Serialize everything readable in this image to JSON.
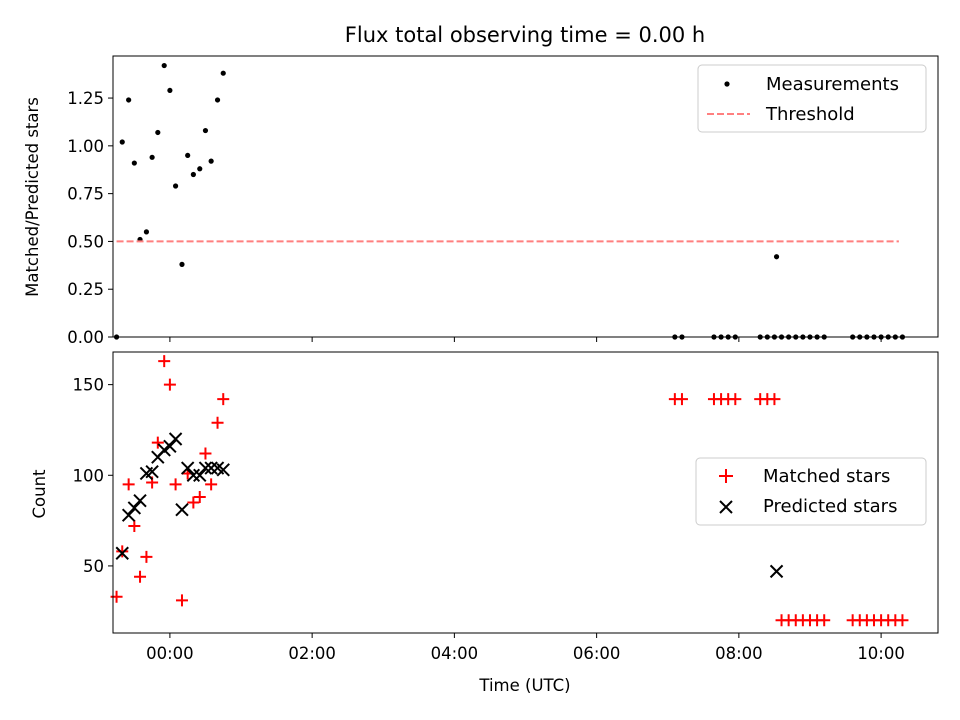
{
  "chart_data": [
    {
      "type": "scatter",
      "title": "Flux total observing time = 0.00 h",
      "xlabel": "",
      "ylabel": "Matched/Predicted stars",
      "xlim": [
        -0.8,
        10.8
      ],
      "ylim": [
        0,
        1.47
      ],
      "yticks": [
        0.0,
        0.25,
        0.5,
        0.75,
        1.0,
        1.25
      ],
      "ytick_labels": [
        "0.00",
        "0.25",
        "0.50",
        "0.75",
        "1.00",
        "1.25"
      ],
      "legend_position": "upper-right",
      "series": [
        {
          "name": "Measurements",
          "marker": "dot",
          "color": "#000000",
          "points": [
            [
              -0.75,
              0.0
            ],
            [
              -0.67,
              1.02
            ],
            [
              -0.58,
              1.24
            ],
            [
              -0.5,
              0.91
            ],
            [
              -0.42,
              0.51
            ],
            [
              -0.33,
              0.55
            ],
            [
              -0.25,
              0.94
            ],
            [
              -0.17,
              1.07
            ],
            [
              -0.08,
              1.42
            ],
            [
              0.0,
              1.29
            ],
            [
              0.08,
              0.79
            ],
            [
              0.17,
              0.38
            ],
            [
              0.25,
              0.95
            ],
            [
              0.33,
              0.85
            ],
            [
              0.42,
              0.88
            ],
            [
              0.5,
              1.08
            ],
            [
              0.58,
              0.92
            ],
            [
              0.67,
              1.24
            ],
            [
              0.75,
              1.38
            ],
            [
              7.1,
              0.0
            ],
            [
              7.2,
              0.0
            ],
            [
              7.65,
              0.0
            ],
            [
              7.75,
              0.0
            ],
            [
              7.85,
              0.0
            ],
            [
              7.95,
              0.0
            ],
            [
              8.3,
              0.0
            ],
            [
              8.4,
              0.0
            ],
            [
              8.5,
              0.0
            ],
            [
              8.53,
              0.42
            ],
            [
              8.6,
              0.0
            ],
            [
              8.7,
              0.0
            ],
            [
              8.8,
              0.0
            ],
            [
              8.9,
              0.0
            ],
            [
              9.0,
              0.0
            ],
            [
              9.1,
              0.0
            ],
            [
              9.2,
              0.0
            ],
            [
              9.6,
              0.0
            ],
            [
              9.7,
              0.0
            ],
            [
              9.8,
              0.0
            ],
            [
              9.9,
              0.0
            ],
            [
              10.0,
              0.0
            ],
            [
              10.1,
              0.0
            ],
            [
              10.2,
              0.0
            ],
            [
              10.3,
              0.0
            ]
          ]
        },
        {
          "name": "Threshold",
          "line_style": "dashed",
          "color": "#ff7f7f",
          "x": [
            -0.75,
            10.25
          ],
          "y": [
            0.5,
            0.5
          ]
        }
      ]
    },
    {
      "type": "scatter",
      "title": "",
      "xlabel": "Time (UTC)",
      "ylabel": "Count",
      "xlim": [
        -0.8,
        10.8
      ],
      "ylim": [
        13,
        168
      ],
      "xticks": [
        0,
        2,
        4,
        6,
        8,
        10
      ],
      "xtick_labels": [
        "00:00",
        "02:00",
        "04:00",
        "06:00",
        "08:00",
        "10:00"
      ],
      "yticks": [
        50,
        100,
        150
      ],
      "ytick_labels": [
        "50",
        "100",
        "150"
      ],
      "legend_position": "center-right",
      "series": [
        {
          "name": "Matched stars",
          "marker": "plus",
          "color": "#ff0000",
          "points": [
            [
              -0.75,
              33
            ],
            [
              -0.67,
              58
            ],
            [
              -0.58,
              95
            ],
            [
              -0.5,
              72
            ],
            [
              -0.42,
              44
            ],
            [
              -0.33,
              55
            ],
            [
              -0.25,
              96
            ],
            [
              -0.17,
              118
            ],
            [
              -0.08,
              163
            ],
            [
              0.0,
              150
            ],
            [
              0.08,
              95
            ],
            [
              0.17,
              31
            ],
            [
              0.25,
              101
            ],
            [
              0.33,
              85
            ],
            [
              0.42,
              88
            ],
            [
              0.5,
              112
            ],
            [
              0.58,
              95
            ],
            [
              0.67,
              129
            ],
            [
              0.75,
              142
            ],
            [
              7.1,
              142
            ],
            [
              7.2,
              142
            ],
            [
              7.65,
              142
            ],
            [
              7.75,
              142
            ],
            [
              7.85,
              142
            ],
            [
              7.95,
              142
            ],
            [
              8.3,
              142
            ],
            [
              8.4,
              142
            ],
            [
              8.5,
              142
            ],
            [
              8.6,
              20
            ],
            [
              8.7,
              20
            ],
            [
              8.8,
              20
            ],
            [
              8.9,
              20
            ],
            [
              9.0,
              20
            ],
            [
              9.1,
              20
            ],
            [
              9.2,
              20
            ],
            [
              9.6,
              20
            ],
            [
              9.7,
              20
            ],
            [
              9.8,
              20
            ],
            [
              9.9,
              20
            ],
            [
              10.0,
              20
            ],
            [
              10.1,
              20
            ],
            [
              10.2,
              20
            ],
            [
              10.3,
              20
            ]
          ]
        },
        {
          "name": "Predicted stars",
          "marker": "x",
          "color": "#000000",
          "points": [
            [
              -0.67,
              57
            ],
            [
              -0.58,
              78
            ],
            [
              -0.5,
              82
            ],
            [
              -0.42,
              86
            ],
            [
              -0.33,
              101
            ],
            [
              -0.25,
              102
            ],
            [
              -0.17,
              110
            ],
            [
              -0.08,
              114
            ],
            [
              0.0,
              116
            ],
            [
              0.08,
              120
            ],
            [
              0.17,
              81
            ],
            [
              0.25,
              104
            ],
            [
              0.33,
              100
            ],
            [
              0.42,
              100
            ],
            [
              0.5,
              104
            ],
            [
              0.58,
              104
            ],
            [
              0.67,
              104
            ],
            [
              0.75,
              103
            ],
            [
              8.53,
              47
            ]
          ]
        }
      ]
    }
  ]
}
